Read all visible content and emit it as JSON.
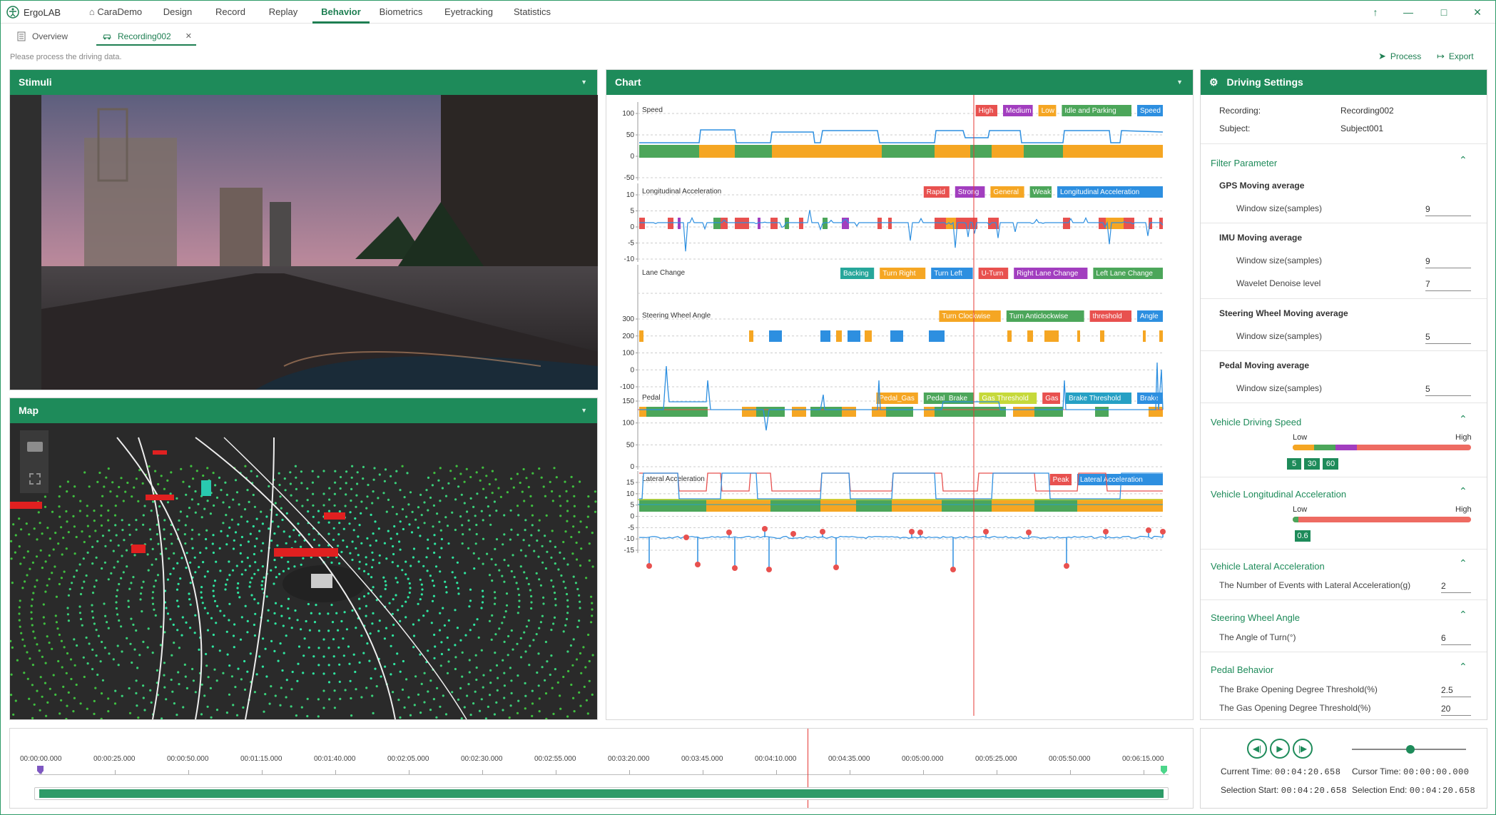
{
  "app": {
    "name": "ErgoLAB"
  },
  "menu": [
    "CaraDemo",
    "Design",
    "Record",
    "Replay",
    "Behavior",
    "Biometrics",
    "Eyetracking",
    "Statistics"
  ],
  "active_menu": "Behavior",
  "tabs": [
    {
      "label": "Overview"
    },
    {
      "label": "Recording002"
    }
  ],
  "hint": "Please process the driving data.",
  "toolbar": {
    "process": "Process",
    "export": "Export"
  },
  "panels": {
    "stimuli": "Stimuli",
    "map": "Map",
    "chart": "Chart",
    "settings": "Driving Settings"
  },
  "settings": {
    "recording_label": "Recording:",
    "recording_value": "Recording002",
    "subject_label": "Subject:",
    "subject_value": "Subject001",
    "filter_title": "Filter Parameter",
    "gps_title": "GPS Moving average",
    "gps_window_label": "Window size(samples)",
    "gps_window": "9",
    "imu_title": "IMU Moving average",
    "imu_window_label": "Window size(samples)",
    "imu_window": "9",
    "imu_wavelet_label": "Wavelet Denoise level",
    "imu_wavelet": "7",
    "steer_title": "Steering Wheel Moving average",
    "steer_window_label": "Window size(samples)",
    "steer_window": "5",
    "pedal_title": "Pedal Moving average",
    "pedal_window_label": "Window size(samples)",
    "pedal_window": "5",
    "speed_title": "Vehicle Driving Speed",
    "speed_low": "Low",
    "speed_high": "High",
    "speed_marks": [
      "5",
      "30",
      "60"
    ],
    "long_title": "Vehicle Longitudinal Acceleration",
    "long_low": "Low",
    "long_high": "High",
    "long_mark": "0.6",
    "lat_title": "Vehicle Lateral Acceleration",
    "lat_label": "The Number of Events with Lateral Acceleration(g)",
    "lat_value": "2",
    "steerangle_title": "Steering Wheel Angle",
    "steerangle_label": "The Angle of Turn(°)",
    "steerangle_value": "6",
    "pedalbeh_title": "Pedal Behavior",
    "brake_label": "The Brake Opening Degree Threshold(%)",
    "brake_value": "2.5",
    "gas_label": "The Gas Opening Degree Threshold(%)",
    "gas_value": "20"
  },
  "timeline": {
    "ticks": [
      "00:00:00.000",
      "00:00:25.000",
      "00:00:50.000",
      "00:01:15.000",
      "00:01:40.000",
      "00:02:05.000",
      "00:02:30.000",
      "00:02:55.000",
      "00:03:20.000",
      "00:03:45.000",
      "00:04:10.000",
      "00:04:35.000",
      "00:05:00.000",
      "00:05:25.000",
      "00:05:50.000",
      "00:06:15.000"
    ]
  },
  "player": {
    "current_time_label": "Current Time:",
    "current_time": "00:04:20.658",
    "cursor_time_label": "Cursor Time:",
    "cursor_time": "00:00:00.000",
    "selection_start_label": "Selection Start:",
    "selection_start": "00:04:20.658",
    "selection_end_label": "Selection End:",
    "selection_end": "00:04:20.658"
  },
  "chart_data": [
    {
      "type": "line",
      "title": "Speed",
      "yticks": [
        "100",
        "50",
        "0",
        "-50"
      ],
      "legend": [
        {
          "label": "High",
          "color": "#e8514f"
        },
        {
          "label": "Medium",
          "color": "#a23ebf"
        },
        {
          "label": "Low",
          "color": "#f5a623"
        },
        {
          "label": "Idle and Parking",
          "color": "#4ca65a"
        },
        {
          "label": "Speed",
          "color": "#2d8fe0"
        }
      ]
    },
    {
      "type": "line",
      "title": "Longitudinal Acceleration",
      "yticks": [
        "10",
        "5",
        "0",
        "-5",
        "-10"
      ],
      "legend": [
        {
          "label": "Rapid",
          "color": "#e8514f"
        },
        {
          "label": "Strong",
          "color": "#a23ebf"
        },
        {
          "label": "General",
          "color": "#f5a623"
        },
        {
          "label": "Weak",
          "color": "#4ca65a"
        },
        {
          "label": "Longitudinal Acceleration",
          "color": "#2d8fe0"
        }
      ]
    },
    {
      "type": "bar",
      "title": "Lane Change",
      "yticks": [],
      "legend": [
        {
          "label": "Backing",
          "color": "#26a69a"
        },
        {
          "label": "Turn Right",
          "color": "#f5a623"
        },
        {
          "label": "Turn Left",
          "color": "#2d8fe0"
        },
        {
          "label": "U-Turn",
          "color": "#e8514f"
        },
        {
          "label": "Right Lane Change",
          "color": "#a23ebf"
        },
        {
          "label": "Left Lane Change",
          "color": "#4ca65a"
        }
      ]
    },
    {
      "type": "line",
      "title": "Steering Wheel Angle",
      "yticks": [
        "300",
        "200",
        "100",
        "0",
        "-100"
      ],
      "legend": [
        {
          "label": "Turn Clockwise",
          "color": "#f5a623"
        },
        {
          "label": "Turn Anticlockwise",
          "color": "#4ca65a"
        },
        {
          "label": "threshold",
          "color": "#e8514f"
        },
        {
          "label": "Angle",
          "color": "#2d8fe0"
        }
      ]
    },
    {
      "type": "line",
      "title": "Pedal",
      "yticks": [
        "150",
        "100",
        "50",
        "0"
      ],
      "legend": [
        {
          "label": "Pedal_Gas",
          "color": "#f5a623"
        },
        {
          "label": "Pedal_Brake",
          "color": "#4ca65a"
        },
        {
          "label": "Gas Threshold",
          "color": "#c6d93a"
        },
        {
          "label": "Gas",
          "color": "#e8514f"
        },
        {
          "label": "Brake Threshold",
          "color": "#26a0c4"
        },
        {
          "label": "Brake",
          "color": "#2d8fe0"
        }
      ]
    },
    {
      "type": "line",
      "title": "Lateral Acceleration",
      "yticks": [
        "15",
        "10",
        "5",
        "0",
        "-5",
        "-10",
        "-15"
      ],
      "legend": [
        {
          "label": "Peak",
          "color": "#e8514f"
        },
        {
          "label": "Lateral Acceleration",
          "color": "#2d8fe0"
        }
      ]
    }
  ]
}
